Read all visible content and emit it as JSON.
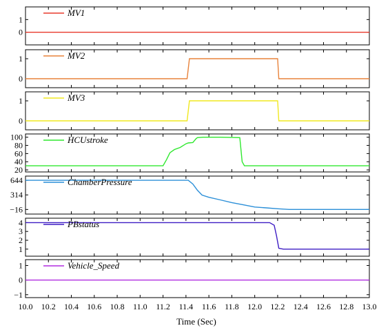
{
  "chart_data": {
    "type": "line",
    "xlabel": "Time (Sec)",
    "x_ticks": [
      "10.0",
      "10.2",
      "10.4",
      "10.6",
      "10.8",
      "11.0",
      "11.2",
      "11.4",
      "11.6",
      "11.8",
      "12.0",
      "12.2",
      "12.4",
      "12.6",
      "12.8",
      "13.0"
    ],
    "xlim": [
      10.0,
      13.0
    ],
    "panels": [
      {
        "name": "MV1",
        "color": "#e8382b",
        "ylim": [
          -1,
          2
        ],
        "y_ticks": [
          0,
          1
        ],
        "y_tick_labels": [
          "0",
          "1"
        ],
        "x": [
          10.0,
          13.0
        ],
        "y": [
          0,
          0
        ]
      },
      {
        "name": "MV2",
        "color": "#e8823a",
        "ylim": [
          -0.45,
          1.45
        ],
        "y_ticks": [
          0,
          1
        ],
        "y_tick_labels": [
          "0",
          "1"
        ],
        "x": [
          10.0,
          11.41,
          11.43,
          12.2,
          12.21,
          13.0
        ],
        "y": [
          0,
          0,
          1,
          1,
          0,
          0
        ]
      },
      {
        "name": "MV3",
        "color": "#f0e81e",
        "ylim": [
          -0.45,
          1.45
        ],
        "y_ticks": [
          0,
          1
        ],
        "y_tick_labels": [
          "0",
          "1"
        ],
        "x": [
          10.0,
          11.41,
          11.43,
          12.2,
          12.21,
          13.0
        ],
        "y": [
          0,
          0,
          1,
          1,
          0,
          0
        ]
      },
      {
        "name": "HCUstroke",
        "color": "#2ee82e",
        "ylim": [
          15,
          108
        ],
        "y_ticks": [
          20,
          40,
          60,
          80,
          100
        ],
        "y_tick_labels": [
          "20",
          "40",
          "60",
          "80",
          "100"
        ],
        "x": [
          10.0,
          11.2,
          11.23,
          11.26,
          11.3,
          11.35,
          11.4,
          11.42,
          11.46,
          11.49,
          11.5,
          11.55,
          11.7,
          11.87,
          11.89,
          11.91,
          13.0
        ],
        "y": [
          30,
          30,
          45,
          62,
          70,
          75,
          84,
          86,
          87,
          97,
          99,
          100,
          100,
          99,
          40,
          30,
          30
        ]
      },
      {
        "name": "ChamberPressure",
        "color": "#2b8fd8",
        "ylim": [
          -120,
          740
        ],
        "y_ticks": [
          -16,
          314,
          644
        ],
        "y_tick_labels": [
          "−16",
          "314",
          "644"
        ],
        "x": [
          10.0,
          11.42,
          11.46,
          11.5,
          11.54,
          11.6,
          11.7,
          11.8,
          11.9,
          12.0,
          12.1,
          12.2,
          12.3,
          13.0
        ],
        "y": [
          644,
          644,
          560,
          420,
          310,
          260,
          200,
          140,
          90,
          40,
          20,
          0,
          -16,
          -16
        ]
      },
      {
        "name": "PBstatus",
        "color": "#3d1cc4",
        "ylim": [
          0.2,
          4.5
        ],
        "y_ticks": [
          1,
          2,
          3,
          4
        ],
        "y_tick_labels": [
          "1",
          "2",
          "3",
          "4"
        ],
        "x": [
          10.0,
          12.13,
          12.17,
          12.19,
          12.21,
          12.25,
          13.0
        ],
        "y": [
          4,
          4,
          3.7,
          2.5,
          1.1,
          1,
          1
        ]
      },
      {
        "name": "Vehicle_Speed",
        "color": "#b02be0",
        "ylim": [
          -1.2,
          1.4
        ],
        "y_ticks": [
          -1,
          0,
          1
        ],
        "y_tick_labels": [
          "−1",
          "0",
          "1"
        ],
        "x": [
          10.0,
          13.0
        ],
        "y": [
          0,
          0
        ]
      }
    ]
  }
}
